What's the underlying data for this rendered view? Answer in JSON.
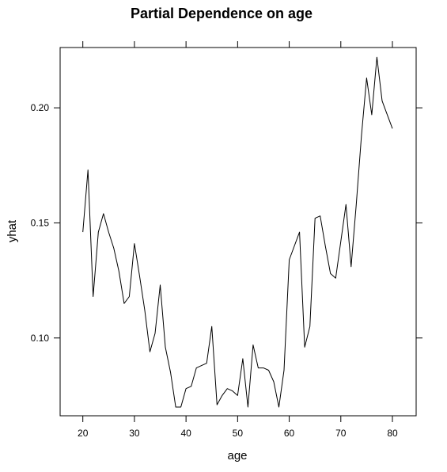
{
  "chart_data": {
    "type": "line",
    "title": "Partial Dependence on age",
    "xlabel": "age",
    "ylabel": "yhat",
    "xlim": [
      15.6,
      84.6
    ],
    "ylim": [
      0.0662,
      0.2262
    ],
    "x_ticks": [
      20,
      30,
      40,
      50,
      60,
      70,
      80
    ],
    "y_ticks": [
      0.1,
      0.15,
      0.2
    ],
    "x_tick_labels": [
      "20",
      "30",
      "40",
      "50",
      "60",
      "70",
      "80"
    ],
    "y_tick_labels": [
      "0.10",
      "0.15",
      "0.20"
    ],
    "grid": false,
    "series": [
      {
        "color": "#000000",
        "x": [
          20,
          21,
          22,
          23,
          24,
          25,
          26,
          27,
          28,
          29,
          30,
          31,
          32,
          33,
          34,
          35,
          36,
          37,
          38,
          39,
          40,
          41,
          42,
          43,
          44,
          45,
          46,
          47,
          48,
          49,
          50,
          51,
          52,
          53,
          54,
          55,
          56,
          57,
          58,
          59,
          60,
          61,
          62,
          63,
          64,
          65,
          66,
          67,
          68,
          69,
          70,
          71,
          72,
          73,
          74,
          75,
          76,
          77,
          78,
          79,
          80
        ],
        "y": [
          0.146,
          0.173,
          0.118,
          0.146,
          0.154,
          0.146,
          0.139,
          0.129,
          0.115,
          0.118,
          0.141,
          0.127,
          0.112,
          0.094,
          0.102,
          0.123,
          0.096,
          0.085,
          0.07,
          0.07,
          0.078,
          0.079,
          0.087,
          0.088,
          0.089,
          0.105,
          0.071,
          0.075,
          0.078,
          0.077,
          0.075,
          0.091,
          0.07,
          0.097,
          0.087,
          0.087,
          0.086,
          0.081,
          0.07,
          0.086,
          0.134,
          0.14,
          0.146,
          0.096,
          0.105,
          0.152,
          0.153,
          0.14,
          0.128,
          0.126,
          0.142,
          0.158,
          0.131,
          0.158,
          0.188,
          0.213,
          0.197,
          0.222,
          0.203,
          0.197,
          0.191
        ]
      }
    ]
  }
}
